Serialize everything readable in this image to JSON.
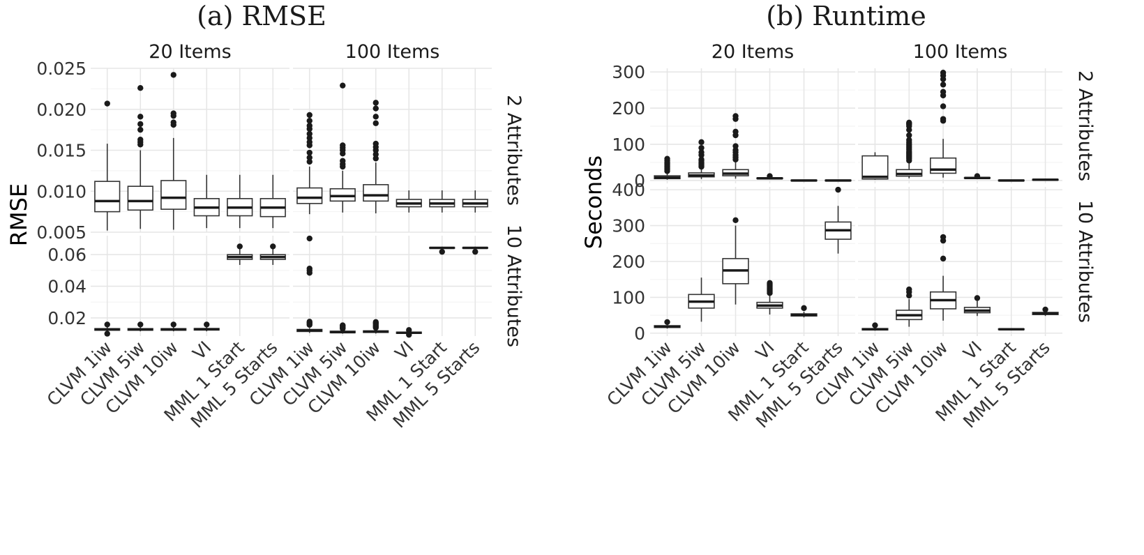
{
  "figure": {
    "panel_titles": [
      "(a) RMSE",
      "(b) Runtime"
    ]
  },
  "chart_data": [
    {
      "type": "box",
      "title": "(a) RMSE",
      "ylabel": "RMSE",
      "xlabel": "",
      "categories": [
        "CLVM 1iw",
        "CLVM 5iw",
        "CLVM 10iw",
        "VI",
        "MML 1 Start",
        "MML 5 Starts"
      ],
      "col_facets": [
        "20 Items",
        "100 Items"
      ],
      "row_facets": [
        "2 Attributes",
        "10 Attributes"
      ],
      "grid": true,
      "facet_scales": "free_y",
      "rows": [
        {
          "ylim": [
            0.005,
            0.025
          ],
          "yticks": [
            0.005,
            0.01,
            0.015,
            0.02,
            0.025
          ],
          "tick_labels": [
            "0.005",
            "0.010",
            "0.015",
            "0.020",
            "0.025"
          ],
          "panels": [
            [
              {
                "q1": 0.0075,
                "median": 0.0088,
                "q3": 0.0112,
                "lo": 0.0052,
                "hi": 0.0158,
                "outliers": [
                  0.0207
                ]
              },
              {
                "q1": 0.0077,
                "median": 0.0088,
                "q3": 0.0106,
                "lo": 0.0054,
                "hi": 0.015,
                "outliers": [
                  0.0157,
                  0.016,
                  0.0163,
                  0.0175,
                  0.0182,
                  0.0191,
                  0.0226
                ]
              },
              {
                "q1": 0.0078,
                "median": 0.0092,
                "q3": 0.0113,
                "lo": 0.0053,
                "hi": 0.0165,
                "outliers": [
                  0.0181,
                  0.0184,
                  0.0192,
                  0.0195,
                  0.0242
                ]
              },
              {
                "q1": 0.007,
                "median": 0.008,
                "q3": 0.0091,
                "lo": 0.0055,
                "hi": 0.012,
                "outliers": []
              },
              {
                "q1": 0.007,
                "median": 0.008,
                "q3": 0.0091,
                "lo": 0.0055,
                "hi": 0.012,
                "outliers": []
              },
              {
                "q1": 0.0069,
                "median": 0.008,
                "q3": 0.0091,
                "lo": 0.0055,
                "hi": 0.012,
                "outliers": []
              }
            ],
            [
              {
                "q1": 0.0085,
                "median": 0.0092,
                "q3": 0.0104,
                "lo": 0.0072,
                "hi": 0.013,
                "outliers": [
                  0.0136,
                  0.0141,
                  0.0147,
                  0.0156,
                  0.016,
                  0.0165,
                  0.017,
                  0.0176,
                  0.018,
                  0.0186,
                  0.0193
                ]
              },
              {
                "q1": 0.0088,
                "median": 0.0094,
                "q3": 0.0103,
                "lo": 0.0074,
                "hi": 0.0125,
                "outliers": [
                  0.013,
                  0.0133,
                  0.0137,
                  0.0146,
                  0.015,
                  0.0153,
                  0.0156,
                  0.0229
                ]
              },
              {
                "q1": 0.0088,
                "median": 0.0095,
                "q3": 0.0108,
                "lo": 0.0073,
                "hi": 0.0135,
                "outliers": [
                  0.014,
                  0.0145,
                  0.015,
                  0.0154,
                  0.0158,
                  0.0183,
                  0.0191,
                  0.0201,
                  0.0208
                ]
              },
              {
                "q1": 0.0081,
                "median": 0.0085,
                "q3": 0.009,
                "lo": 0.0074,
                "hi": 0.0101,
                "outliers": []
              },
              {
                "q1": 0.0081,
                "median": 0.0085,
                "q3": 0.009,
                "lo": 0.0074,
                "hi": 0.0101,
                "outliers": []
              },
              {
                "q1": 0.0081,
                "median": 0.0085,
                "q3": 0.009,
                "lo": 0.0074,
                "hi": 0.0101,
                "outliers": []
              }
            ]
          ]
        },
        {
          "ylim": [
            0.0085,
            0.072
          ],
          "yticks": [
            0.02,
            0.04,
            0.06
          ],
          "tick_labels": [
            "0.02",
            "0.04",
            "0.06"
          ],
          "panels": [
            [
              {
                "q1": 0.0122,
                "median": 0.0127,
                "q3": 0.0132,
                "lo": 0.0115,
                "hi": 0.014,
                "outliers": [
                  0.0158,
                  0.01
                ]
              },
              {
                "q1": 0.0122,
                "median": 0.0127,
                "q3": 0.0132,
                "lo": 0.0115,
                "hi": 0.014,
                "outliers": [
                  0.0158
                ]
              },
              {
                "q1": 0.0122,
                "median": 0.0127,
                "q3": 0.0132,
                "lo": 0.0115,
                "hi": 0.014,
                "outliers": [
                  0.0158
                ]
              },
              {
                "q1": 0.0123,
                "median": 0.0128,
                "q3": 0.0133,
                "lo": 0.0115,
                "hi": 0.0141,
                "outliers": [
                  0.0158
                ]
              },
              {
                "q1": 0.057,
                "median": 0.0585,
                "q3": 0.06,
                "lo": 0.0535,
                "hi": 0.064,
                "outliers": [
                  0.0652
                ]
              },
              {
                "q1": 0.057,
                "median": 0.0585,
                "q3": 0.06,
                "lo": 0.0535,
                "hi": 0.064,
                "outliers": [
                  0.0652
                ]
              }
            ],
            [
              {
                "q1": 0.0114,
                "median": 0.0121,
                "q3": 0.0127,
                "lo": 0.0105,
                "hi": 0.0136,
                "outliers": [
                  0.0156,
                  0.0163,
                  0.017,
                  0.0176,
                  0.0485,
                  0.05,
                  0.0512,
                  0.0702
                ]
              },
              {
                "q1": 0.0106,
                "median": 0.011,
                "q3": 0.0116,
                "lo": 0.01,
                "hi": 0.0124,
                "outliers": [
                  0.0132,
                  0.0137,
                  0.0142,
                  0.0149,
                  0.0153
                ]
              },
              {
                "q1": 0.0108,
                "median": 0.0113,
                "q3": 0.0118,
                "lo": 0.0101,
                "hi": 0.0127,
                "outliers": [
                  0.0138,
                  0.0145,
                  0.0152,
                  0.016,
                  0.0168,
                  0.0174
                ]
              },
              {
                "q1": 0.0102,
                "median": 0.0106,
                "q3": 0.011,
                "lo": 0.0098,
                "hi": 0.0116,
                "outliers": [
                  0.0093,
                  0.0123
                ]
              },
              {
                "q1": 0.064,
                "median": 0.0643,
                "q3": 0.0646,
                "lo": 0.0636,
                "hi": 0.065,
                "outliers": [
                  0.0618
                ]
              },
              {
                "q1": 0.064,
                "median": 0.0643,
                "q3": 0.0646,
                "lo": 0.0636,
                "hi": 0.065,
                "outliers": [
                  0.0618
                ]
              }
            ]
          ]
        }
      ]
    },
    {
      "type": "box",
      "title": "(b) Runtime",
      "ylabel": "Seconds",
      "xlabel": "",
      "categories": [
        "CLVM 1iw",
        "CLVM 5iw",
        "CLVM 10iw",
        "VI",
        "MML 1 Start",
        "MML 5 Starts"
      ],
      "col_facets": [
        "20 Items",
        "100 Items"
      ],
      "row_facets": [
        "2 Attributes",
        "10 Attributes"
      ],
      "grid": true,
      "facet_scales": "free_y",
      "rows": [
        {
          "ylim": [
            -8,
            310
          ],
          "yticks": [
            0,
            100,
            200,
            300
          ],
          "tick_labels": [
            "0",
            "100",
            "200",
            "300"
          ],
          "panels": [
            [
              {
                "q1": 5,
                "median": 8,
                "q3": 13,
                "lo": 2,
                "hi": 24,
                "outliers": [
                  26,
                  30,
                  34,
                  38,
                  42,
                  46,
                  50,
                  55,
                  60
                ]
              },
              {
                "q1": 10,
                "median": 14,
                "q3": 21,
                "lo": 4,
                "hi": 36,
                "outliers": [
                  38,
                  42,
                  46,
                  50,
                  55,
                  58,
                  70,
                  78,
                  90,
                  106
                ]
              },
              {
                "q1": 13,
                "median": 19,
                "q3": 30,
                "lo": 5,
                "hi": 52,
                "outliers": [
                  58,
                  64,
                  70,
                  78,
                  84,
                  95,
                  125,
                  135,
                  170,
                  178
                ]
              },
              {
                "q1": 5,
                "median": 6,
                "q3": 7,
                "lo": 4,
                "hi": 9,
                "outliers": [
                  12
                ]
              },
              {
                "q1": -1,
                "median": 0,
                "q3": 1,
                "lo": -2,
                "hi": 2,
                "outliers": []
              },
              {
                "q1": -1,
                "median": 0,
                "q3": 1,
                "lo": -2,
                "hi": 2,
                "outliers": []
              }
            ],
            [
              {
                "q1": 4,
                "median": 10,
                "q3": 68,
                "lo": 2,
                "hi": 78,
                "outliers": []
              },
              {
                "q1": 12,
                "median": 18,
                "q3": 30,
                "lo": 6,
                "hi": 50,
                "outliers": [
                  55,
                  60,
                  64,
                  68,
                  72,
                  76,
                  80,
                  85,
                  90,
                  95,
                  100,
                  106,
                  112,
                  125,
                  140,
                  150,
                  155,
                  158,
                  160
                ]
              },
              {
                "q1": 20,
                "median": 30,
                "q3": 62,
                "lo": 8,
                "hi": 115,
                "outliers": [
                  165,
                  170,
                  205,
                  235,
                  245,
                  265,
                  280,
                  290,
                  298
                ]
              },
              {
                "q1": 6,
                "median": 7,
                "q3": 8,
                "lo": 5,
                "hi": 10,
                "outliers": [
                  12
                ]
              },
              {
                "q1": -1,
                "median": 0,
                "q3": 1,
                "lo": -2,
                "hi": 2,
                "outliers": []
              },
              {
                "q1": 1,
                "median": 2,
                "q3": 3,
                "lo": 0,
                "hi": 4,
                "outliers": []
              }
            ]
          ]
        },
        {
          "ylim": [
            -8,
            408
          ],
          "yticks": [
            0,
            100,
            200,
            300,
            400
          ],
          "tick_labels": [
            "0",
            "100",
            "200",
            "300",
            "400"
          ],
          "panels": [
            [
              {
                "q1": 16,
                "median": 18,
                "q3": 21,
                "lo": 13,
                "hi": 26,
                "outliers": [
                  31
                ]
              },
              {
                "q1": 70,
                "median": 88,
                "q3": 108,
                "lo": 32,
                "hi": 155,
                "outliers": []
              },
              {
                "q1": 138,
                "median": 175,
                "q3": 208,
                "lo": 80,
                "hi": 300,
                "outliers": [
                  315
                ]
              },
              {
                "q1": 70,
                "median": 77,
                "q3": 86,
                "lo": 52,
                "hi": 108,
                "outliers": [
                  112,
                  116,
                  120,
                  124,
                  128,
                  132,
                  136,
                  140
                ]
              },
              {
                "q1": 48,
                "median": 51,
                "q3": 54,
                "lo": 44,
                "hi": 60,
                "outliers": [
                  70
                ]
              },
              {
                "q1": 262,
                "median": 287,
                "q3": 310,
                "lo": 222,
                "hi": 355,
                "outliers": [
                  400
                ]
              }
            ],
            [
              {
                "q1": 9,
                "median": 11,
                "q3": 13,
                "lo": 7,
                "hi": 16,
                "outliers": [
                  22
                ]
              },
              {
                "q1": 38,
                "median": 50,
                "q3": 64,
                "lo": 18,
                "hi": 95,
                "outliers": [
                  105,
                  115,
                  122
                ]
              },
              {
                "q1": 68,
                "median": 92,
                "q3": 115,
                "lo": 35,
                "hi": 160,
                "outliers": [
                  208,
                  258,
                  268
                ]
              },
              {
                "q1": 57,
                "median": 63,
                "q3": 72,
                "lo": 48,
                "hi": 90,
                "outliers": [
                  98
                ]
              },
              {
                "q1": 10,
                "median": 11,
                "q3": 12,
                "lo": 9,
                "hi": 13,
                "outliers": []
              },
              {
                "q1": 52,
                "median": 55,
                "q3": 58,
                "lo": 48,
                "hi": 62,
                "outliers": [
                  66
                ]
              }
            ]
          ]
        }
      ]
    }
  ]
}
